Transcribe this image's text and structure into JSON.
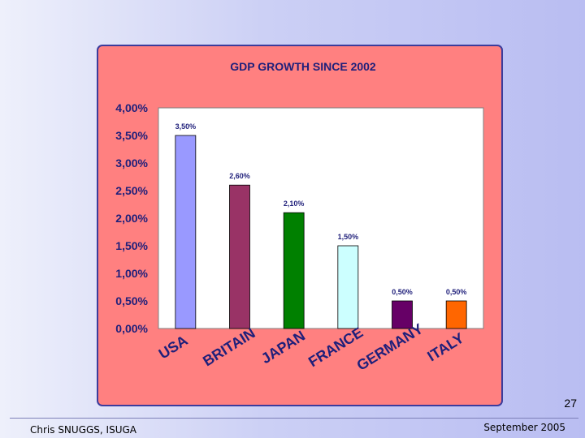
{
  "chart_data": {
    "type": "bar",
    "title": "GDP GROWTH SINCE 2002",
    "categories": [
      "USA",
      "BRITAIN",
      "JAPAN",
      "FRANCE",
      "GERMANY",
      "ITALY"
    ],
    "values": [
      3.5,
      2.6,
      2.1,
      1.5,
      0.5,
      0.5
    ],
    "data_labels": [
      "3,50%",
      "2,60%",
      "2,10%",
      "1,50%",
      "0,50%",
      "0,50%"
    ],
    "colors": [
      "#9999ff",
      "#993366",
      "#008000",
      "#ccffff",
      "#660066",
      "#ff6600"
    ],
    "ylim": [
      0,
      4
    ],
    "yticks": [
      0,
      0.5,
      1,
      1.5,
      2,
      2.5,
      3,
      3.5,
      4
    ],
    "ytick_labels": [
      "0,00%",
      "0,50%",
      "1,00%",
      "1,50%",
      "2,00%",
      "2,50%",
      "3,00%",
      "3,50%",
      "4,00%"
    ],
    "xlabel": "",
    "ylabel": "",
    "grid": false,
    "legend": "none"
  },
  "slide": {
    "page_number": "27",
    "author": "Chris SNUGGS, ISUGA",
    "date": "September 2005"
  },
  "colors": {
    "panel_bg": "#ff8080",
    "plot_bg": "#ffffff",
    "text": "#1f1f7a"
  }
}
